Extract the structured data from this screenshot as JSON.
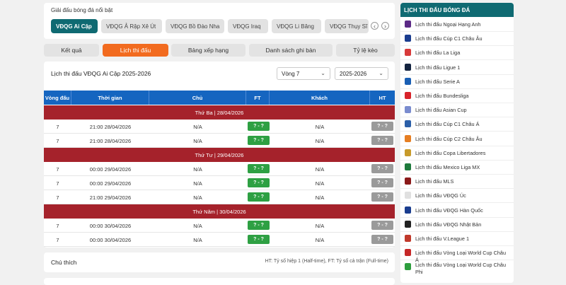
{
  "header": {
    "featured_label": "Giải đấu bóng đá nổi bật",
    "featured_leagues": [
      "VĐQG Ai Cập",
      "VĐQG Ả Rập Xê Út",
      "VĐQG Bồ Đào Nha",
      "VĐQG Iraq",
      "VĐQG Li Băng",
      "VĐQG Thụy Sĩ"
    ]
  },
  "tabs": [
    "Kết quả",
    "Lịch thi đấu",
    "Bảng xếp hạng",
    "Danh sách ghi bàn",
    "Tỷ lệ kèo"
  ],
  "schedule": {
    "title": "Lịch thi đấu VĐQG Ai Cập 2025-2026",
    "round": "Vòng 7",
    "season": "2025-2026"
  },
  "table": {
    "columns": [
      "Vòng đấu",
      "Thời gian",
      "Chủ",
      "FT",
      "Khách",
      "HT"
    ],
    "groups": [
      {
        "date": "Thứ Ba | 28/04/2026",
        "rows": [
          [
            "7",
            "21:00 28/04/2026",
            "N/A",
            "? - ?",
            "N/A",
            "? - ?"
          ],
          [
            "7",
            "21:00 28/04/2026",
            "N/A",
            "? - ?",
            "N/A",
            "? - ?"
          ]
        ]
      },
      {
        "date": "Thứ Tư | 29/04/2026",
        "rows": [
          [
            "7",
            "00:00 29/04/2026",
            "N/A",
            "? - ?",
            "N/A",
            "? - ?"
          ],
          [
            "7",
            "00:00 29/04/2026",
            "N/A",
            "? - ?",
            "N/A",
            "? - ?"
          ],
          [
            "7",
            "21:00 29/04/2026",
            "N/A",
            "? - ?",
            "N/A",
            "? - ?"
          ]
        ]
      },
      {
        "date": "Thứ Năm | 30/04/2026",
        "rows": [
          [
            "7",
            "00:00 30/04/2026",
            "N/A",
            "? - ?",
            "N/A",
            "? - ?"
          ],
          [
            "7",
            "00:00 30/04/2026",
            "N/A",
            "? - ?",
            "N/A",
            "? - ?"
          ]
        ]
      }
    ]
  },
  "legend": {
    "title": "Chú thích",
    "text": "HT: Tỷ số hiệp 1 (Half-time), FT: Tỷ số cả trận (Full-time)"
  },
  "sidebar": {
    "title": "LỊCH THI ĐẤU BÓNG ĐÁ",
    "items": [
      "Lịch thi đấu Ngoại Hạng Anh",
      "Lịch thi đấu Cúp C1 Châu Âu",
      "Lịch thi đấu La Liga",
      "Lịch thi đấu Ligue 1",
      "Lịch thi đấu Serie A",
      "Lịch thi đấu Bundesliga",
      "Lịch thi đấu Asian Cup",
      "Lịch thi đấu Cúp C1 Châu Á",
      "Lịch thi đấu Cúp C2 Châu Âu",
      "Lịch thi đấu Copa Libertadores",
      "Lịch thi đấu Mexico Liga MX",
      "Lịch thi đấu MLS",
      "Lịch thi đấu VĐQG Úc",
      "Lịch thi đấu VĐQG Hàn Quốc",
      "Lịch thi đấu VĐQG Nhật Bản",
      "Lịch thi đấu V.League 1",
      "Lịch thi đấu Vòng Loại World Cup Châu Á",
      "Lịch thi đấu Vòng Loại World Cup Châu Phi"
    ]
  }
}
